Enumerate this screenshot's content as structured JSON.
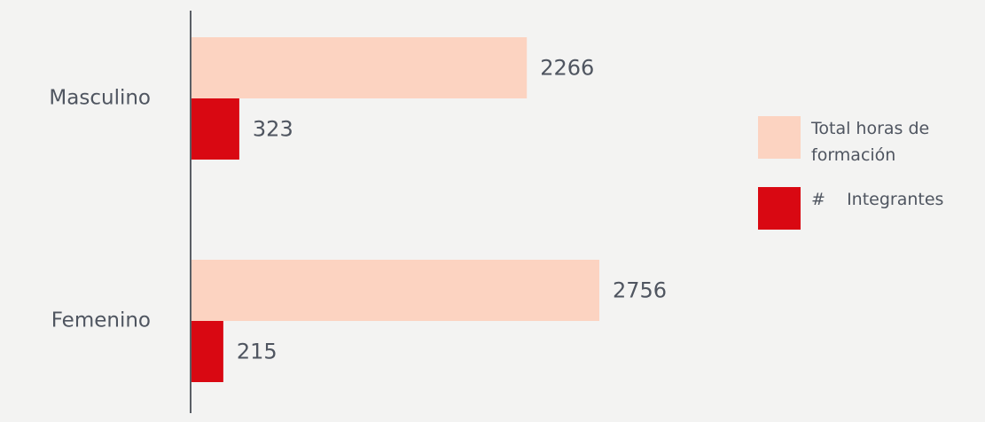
{
  "chart_data": {
    "type": "bar",
    "orientation": "horizontal",
    "categories": [
      "Masculino",
      "Femenino"
    ],
    "series": [
      {
        "name": "Total horas de formación",
        "color": "#fcd3c1",
        "values": [
          2266,
          2756
        ]
      },
      {
        "name": "#    Integrantes",
        "color": "#d90812",
        "values": [
          323,
          215
        ]
      }
    ],
    "legend": "right",
    "data_labels": true
  }
}
